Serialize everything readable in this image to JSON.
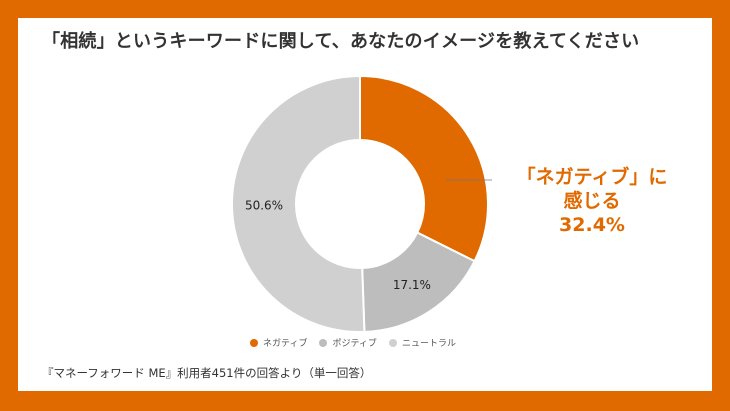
{
  "title": "「相続」というキーワードに関して、あなたのイメージを教えてください",
  "callout": {
    "line1": "「ネガティブ」に",
    "line2": "感じる",
    "line3": "32.4%"
  },
  "source": "『マネーフォワード ME』利用者451件の回答より（単一回答）",
  "colors": {
    "frame": "#E06A00",
    "negative": "#E06A00",
    "positive": "#BDBDBD",
    "neutral": "#D0D0D0"
  },
  "chart_data": {
    "type": "pie",
    "categories": [
      "ネガティブ",
      "ポジティブ",
      "ニュートラル"
    ],
    "values": [
      32.4,
      17.1,
      50.6
    ],
    "data_labels": [
      "",
      "17.1%",
      "50.6%"
    ],
    "legend": {
      "placement": "bottom",
      "entries": [
        "ネガティブ",
        "ポジティブ",
        "ニュートラル"
      ]
    }
  }
}
